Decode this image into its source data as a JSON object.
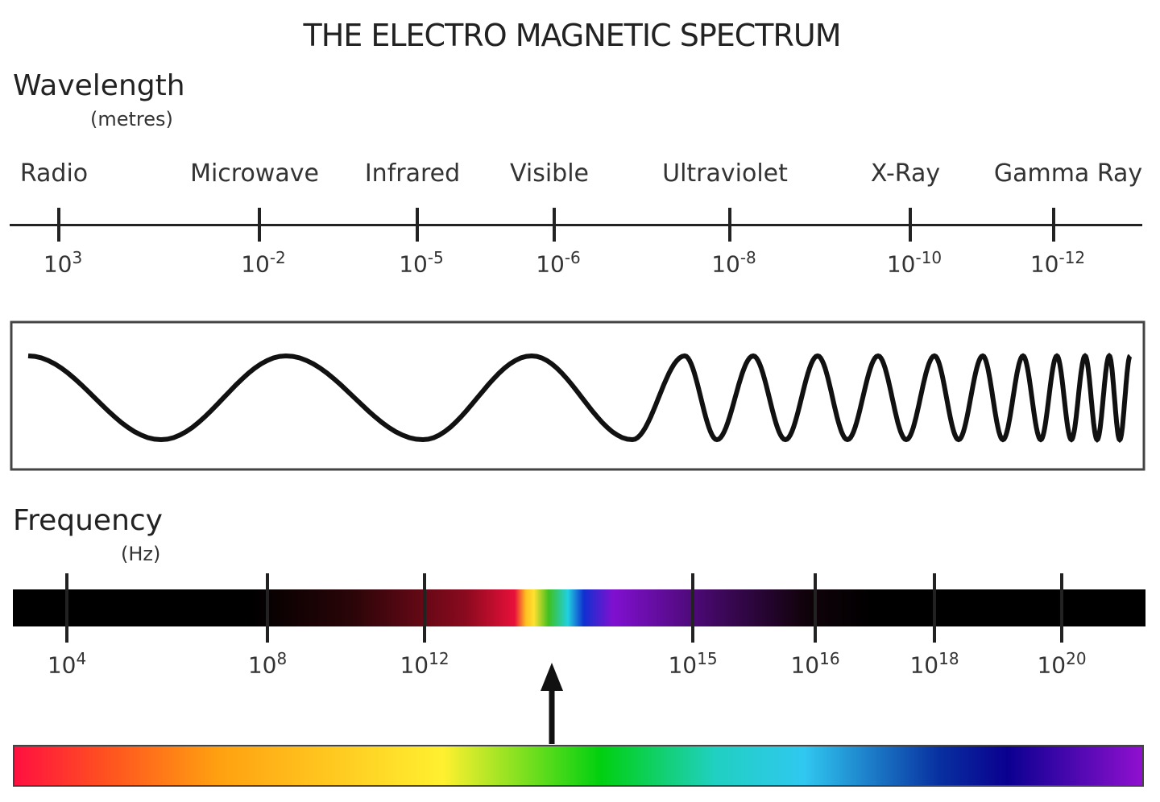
{
  "title": "THE ELECTRO MAGNETIC SPECTRUM",
  "wavelength": {
    "heading": "Wavelength",
    "unit": "(metres)",
    "bands": [
      "Radio",
      "Microwave",
      "Infrared",
      "Visible",
      "Ultraviolet",
      "X-Ray",
      "Gamma Ray"
    ],
    "exponents": [
      "3",
      "-2",
      "-5",
      "-6",
      "-8",
      "-10",
      "-12"
    ]
  },
  "frequency": {
    "heading": "Frequency",
    "unit": "(Hz)",
    "exponents": [
      "4",
      "8",
      "12",
      "15",
      "16",
      "18",
      "20"
    ]
  },
  "colors": {
    "line": "#222222",
    "visible_red": "#e8103a",
    "visible_violet": "#8010d0"
  }
}
